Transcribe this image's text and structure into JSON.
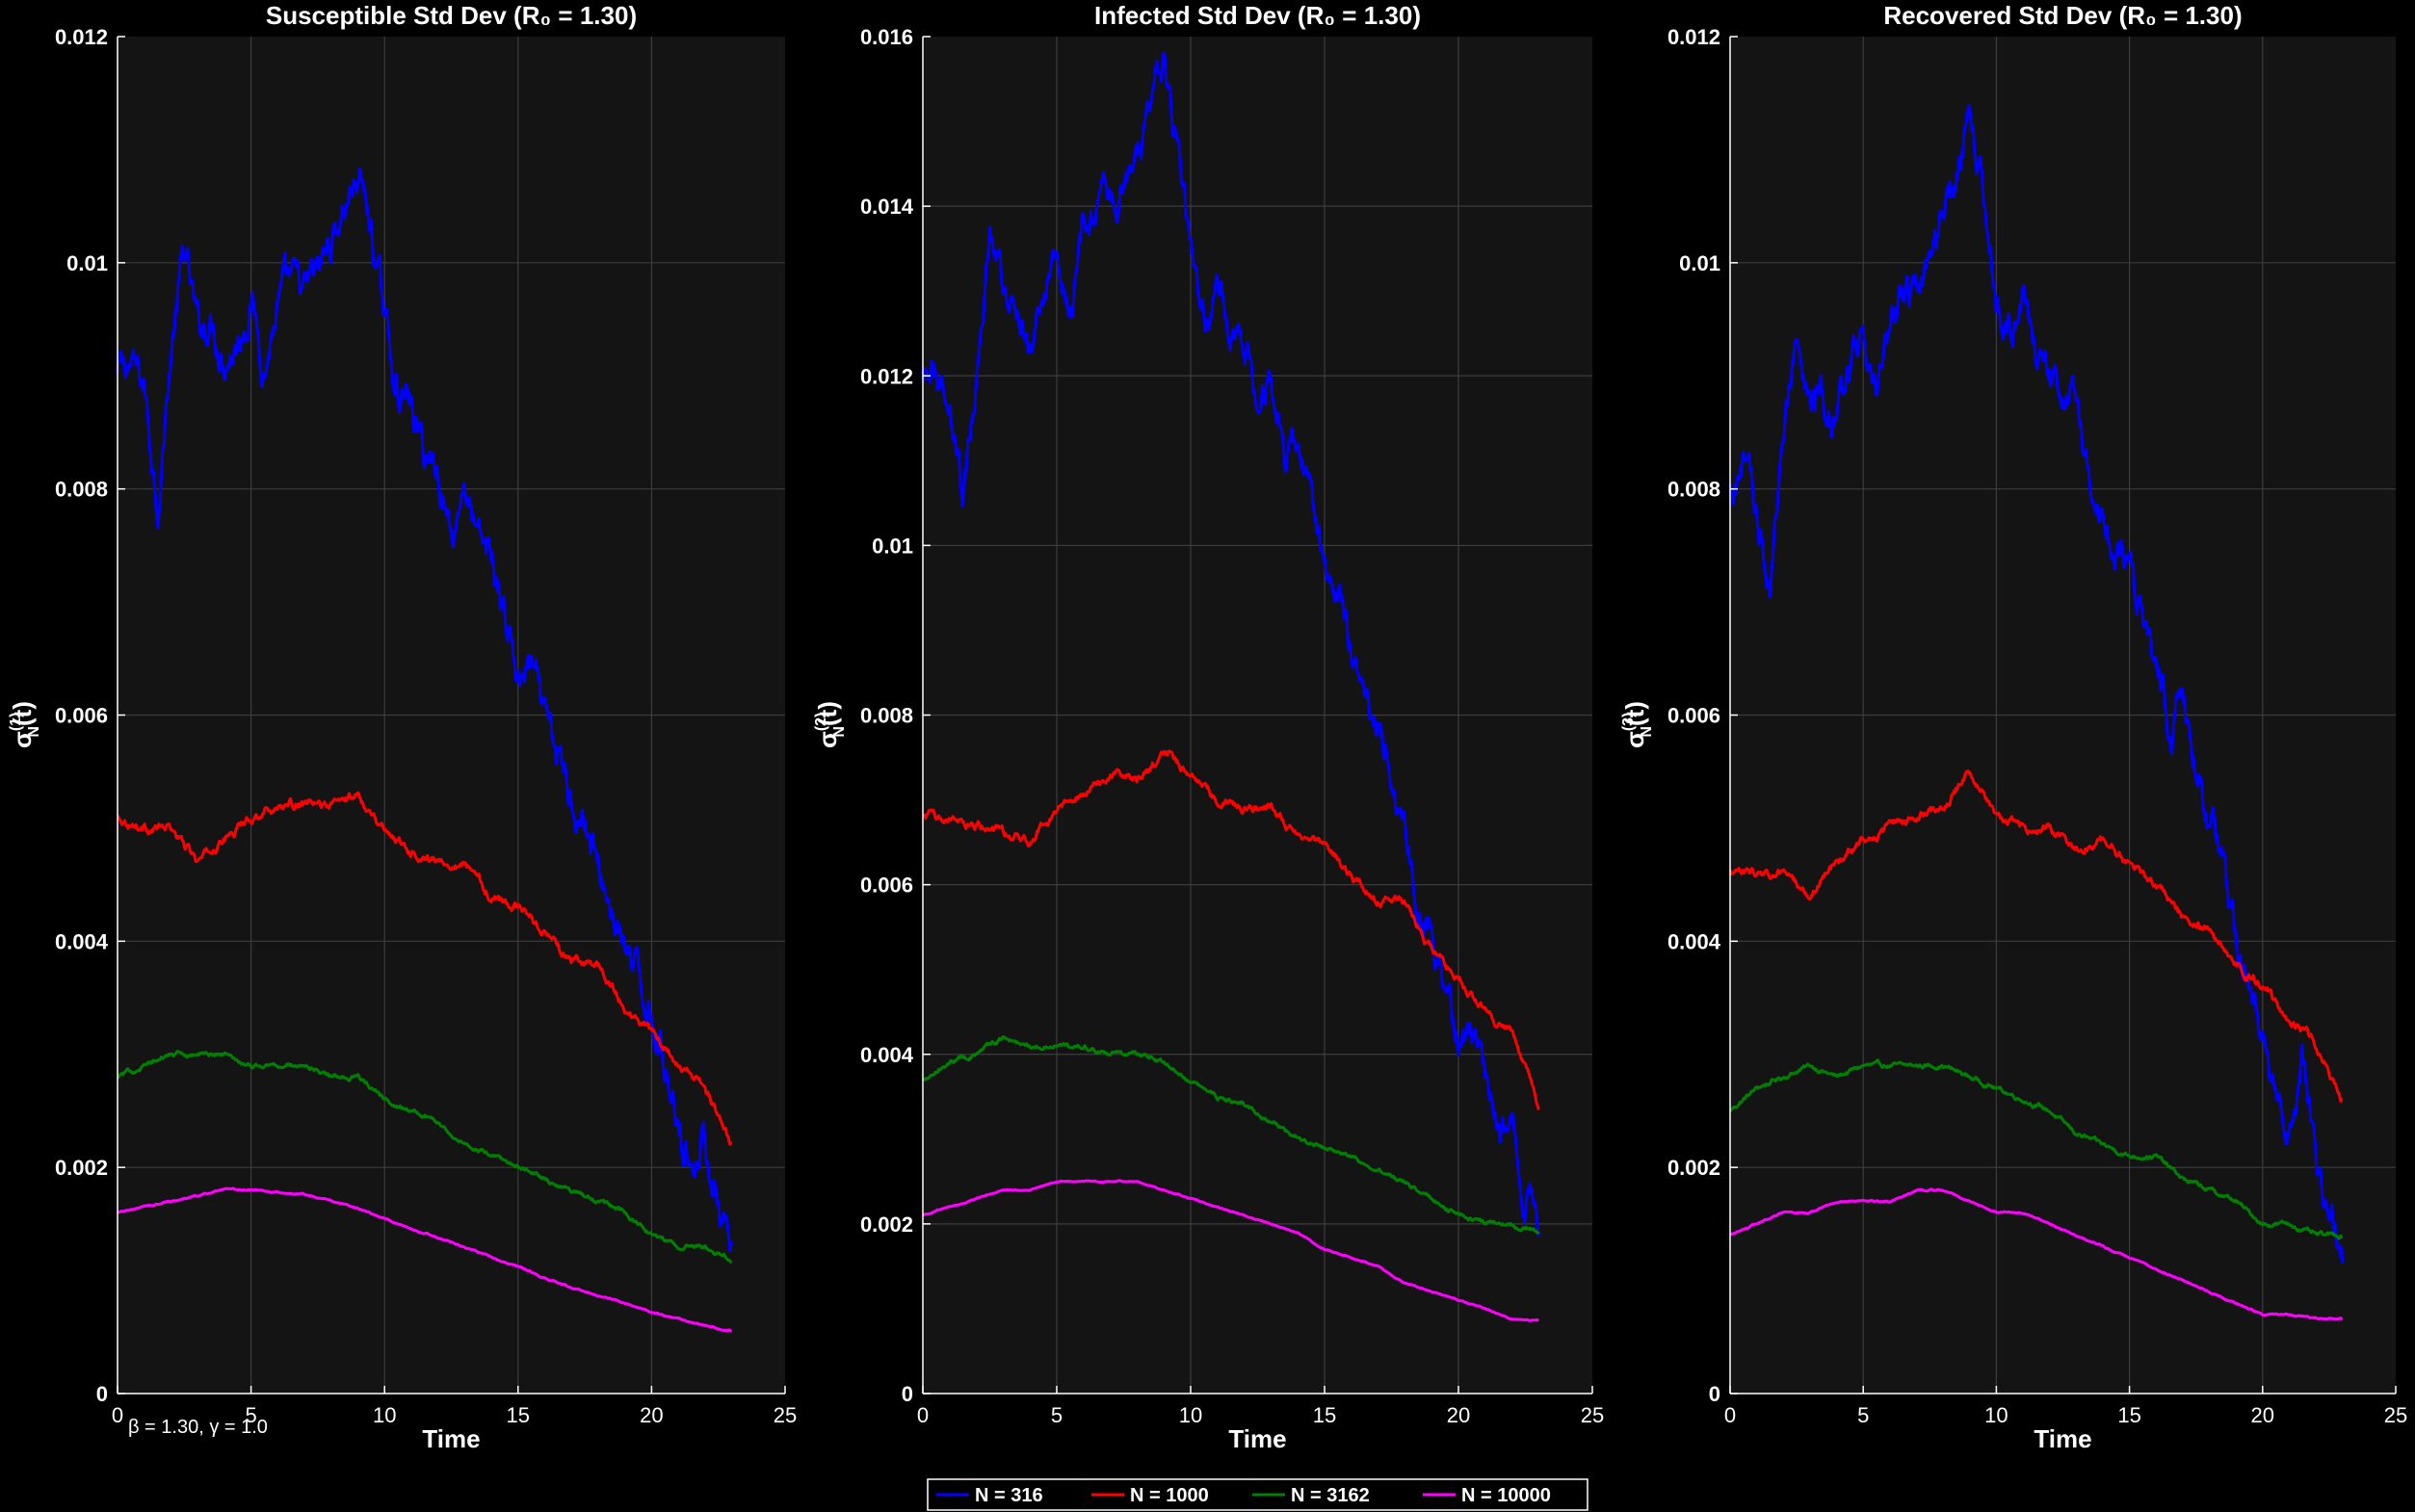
{
  "annotation": "β = 1.30, γ = 1.0",
  "legend": {
    "placement": "bottom-center",
    "entries": [
      {
        "label": "N = 316",
        "color": "#0000ff"
      },
      {
        "label": "N = 1000",
        "color": "#ff0000"
      },
      {
        "label": "N = 3162",
        "color": "#008000"
      },
      {
        "label": "N = 10000",
        "color": "#ff00ff"
      }
    ]
  },
  "chart_data": [
    {
      "type": "line",
      "title": "Susceptible Std Dev (R₀ = 1.30)",
      "xlabel": "Time",
      "ylabel_base": "σ",
      "ylabel_sup": "(1)",
      "ylabel_sub": "N",
      "ylabel_tail": "(t)",
      "xlim": [
        0,
        25
      ],
      "ylim": [
        0,
        0.012
      ],
      "xticks": [
        0,
        5,
        10,
        15,
        20,
        25
      ],
      "yticks": [
        0,
        0.002,
        0.004,
        0.006,
        0.008,
        0.01,
        0.012
      ],
      "ytick_labels": [
        "0",
        "0.002",
        "0.004",
        "0.006",
        "0.008",
        "0.01",
        "0.012"
      ],
      "grid": true,
      "series": [
        {
          "name": "N = 316",
          "color": "#0000ff",
          "noise": 0.00025,
          "x": [
            0,
            0.5,
            1,
            1.5,
            2,
            2.5,
            3,
            3.5,
            4,
            4.5,
            5,
            5.5,
            6,
            6.5,
            7,
            7.5,
            8,
            8.5,
            9,
            9.5,
            10,
            10.5,
            11,
            11.5,
            12,
            12.5,
            13,
            13.5,
            14,
            14.5,
            15,
            15.5,
            16,
            16.5,
            17,
            17.5,
            18,
            18.5,
            19,
            19.5,
            20,
            20.5,
            21,
            21.5,
            22,
            22.5,
            23
          ],
          "y": [
            0.009,
            0.0091,
            0.0089,
            0.0079,
            0.0092,
            0.0101,
            0.0094,
            0.0095,
            0.0092,
            0.0093,
            0.0097,
            0.0091,
            0.0096,
            0.0098,
            0.0097,
            0.0099,
            0.0102,
            0.0105,
            0.0108,
            0.0103,
            0.0095,
            0.0089,
            0.0087,
            0.0083,
            0.0082,
            0.0076,
            0.0081,
            0.0075,
            0.0074,
            0.0069,
            0.0063,
            0.0064,
            0.0059,
            0.0056,
            0.0053,
            0.0051,
            0.0046,
            0.0043,
            0.0039,
            0.0036,
            0.0034,
            0.0029,
            0.0025,
            0.002,
            0.0023,
            0.0016,
            0.0011
          ]
        },
        {
          "name": "N = 1000",
          "color": "#ff0000",
          "noise": 6e-05,
          "x": [
            0,
            1,
            2,
            3,
            4,
            5,
            6,
            7,
            8,
            9,
            10,
            11,
            12,
            13,
            14,
            15,
            16,
            17,
            18,
            19,
            20,
            21,
            22,
            23
          ],
          "y": [
            0.0051,
            0.005,
            0.005,
            0.0047,
            0.0049,
            0.0051,
            0.0052,
            0.0052,
            0.0052,
            0.0053,
            0.005,
            0.0048,
            0.0047,
            0.0047,
            0.0044,
            0.0043,
            0.0041,
            0.0038,
            0.0038,
            0.0034,
            0.0032,
            0.0029,
            0.0027,
            0.0022
          ]
        },
        {
          "name": "N = 3162",
          "color": "#008000",
          "noise": 3e-05,
          "x": [
            0,
            1,
            2,
            3,
            4,
            5,
            6,
            7,
            8,
            9,
            10,
            11,
            12,
            13,
            14,
            15,
            16,
            17,
            18,
            19,
            20,
            21,
            22,
            23
          ],
          "y": [
            0.0028,
            0.0029,
            0.003,
            0.003,
            0.003,
            0.0029,
            0.0029,
            0.0029,
            0.0028,
            0.0028,
            0.0026,
            0.0025,
            0.0024,
            0.0022,
            0.0021,
            0.002,
            0.0019,
            0.0018,
            0.0017,
            0.0016,
            0.0014,
            0.0013,
            0.0013,
            0.0012
          ]
        },
        {
          "name": "N = 10000",
          "color": "#ff00ff",
          "noise": 1e-05,
          "x": [
            0,
            1,
            2,
            3,
            4,
            5,
            6,
            7,
            8,
            9,
            10,
            11,
            12,
            13,
            14,
            15,
            16,
            17,
            18,
            19,
            20,
            21,
            22,
            23
          ],
          "y": [
            0.0016,
            0.00165,
            0.0017,
            0.00175,
            0.0018,
            0.0018,
            0.00178,
            0.00176,
            0.0017,
            0.00164,
            0.00155,
            0.00146,
            0.00138,
            0.0013,
            0.0012,
            0.00112,
            0.00102,
            0.00094,
            0.00087,
            0.0008,
            0.00072,
            0.00066,
            0.0006,
            0.00056
          ]
        }
      ]
    },
    {
      "type": "line",
      "title": "Infected Std Dev (R₀ = 1.30)",
      "xlabel": "Time",
      "ylabel_base": "σ",
      "ylabel_sup": "(2)",
      "ylabel_sub": "N",
      "ylabel_tail": "(t)",
      "xlim": [
        0,
        25
      ],
      "ylim": [
        0,
        0.016
      ],
      "xticks": [
        0,
        5,
        10,
        15,
        20,
        25
      ],
      "yticks": [
        0,
        0.002,
        0.004,
        0.006,
        0.008,
        0.01,
        0.012,
        0.014,
        0.016
      ],
      "ytick_labels": [
        "0",
        "0.002",
        "0.004",
        "0.006",
        "0.008",
        "0.01",
        "0.012",
        "0.014",
        "0.016"
      ],
      "grid": true,
      "series": [
        {
          "name": "N = 316",
          "color": "#0000ff",
          "noise": 0.0003,
          "x": [
            0,
            0.5,
            1,
            1.5,
            2,
            2.5,
            3,
            3.5,
            4,
            4.5,
            5,
            5.5,
            6,
            6.5,
            7,
            7.5,
            8,
            8.5,
            9,
            9.5,
            10,
            10.5,
            11,
            11.5,
            12,
            12.5,
            13,
            13.5,
            14,
            14.5,
            15,
            15.5,
            16,
            16.5,
            17,
            17.5,
            18,
            18.5,
            19,
            19.5,
            20,
            20.5,
            21,
            21.5,
            22,
            22.5,
            23
          ],
          "y": [
            0.012,
            0.0122,
            0.0118,
            0.0106,
            0.012,
            0.0138,
            0.013,
            0.0128,
            0.0124,
            0.0129,
            0.0134,
            0.0128,
            0.0136,
            0.0139,
            0.014,
            0.0142,
            0.0146,
            0.0151,
            0.0157,
            0.0148,
            0.0134,
            0.0126,
            0.0131,
            0.0126,
            0.0123,
            0.0118,
            0.0121,
            0.011,
            0.0113,
            0.0106,
            0.0097,
            0.0094,
            0.0089,
            0.0082,
            0.0078,
            0.0073,
            0.0066,
            0.0058,
            0.0054,
            0.0049,
            0.0043,
            0.0042,
            0.0037,
            0.003,
            0.0034,
            0.0024,
            0.0018
          ]
        },
        {
          "name": "N = 1000",
          "color": "#ff0000",
          "noise": 8e-05,
          "x": [
            0,
            1,
            2,
            3,
            4,
            5,
            6,
            7,
            8,
            9,
            10,
            11,
            12,
            13,
            14,
            15,
            16,
            17,
            18,
            19,
            20,
            21,
            22,
            23
          ],
          "y": [
            0.0068,
            0.0068,
            0.0067,
            0.0066,
            0.0065,
            0.0069,
            0.0071,
            0.0073,
            0.0072,
            0.0076,
            0.0073,
            0.007,
            0.0069,
            0.0069,
            0.0066,
            0.0065,
            0.0061,
            0.0058,
            0.0058,
            0.0052,
            0.0049,
            0.0045,
            0.0042,
            0.0034
          ]
        },
        {
          "name": "N = 3162",
          "color": "#008000",
          "noise": 4e-05,
          "x": [
            0,
            1,
            2,
            3,
            4,
            5,
            6,
            7,
            8,
            9,
            10,
            11,
            12,
            13,
            14,
            15,
            16,
            17,
            18,
            19,
            20,
            21,
            22,
            23
          ],
          "y": [
            0.0037,
            0.0039,
            0.004,
            0.0042,
            0.0041,
            0.0041,
            0.0041,
            0.004,
            0.004,
            0.0039,
            0.0037,
            0.0035,
            0.0034,
            0.0032,
            0.003,
            0.0029,
            0.0028,
            0.0026,
            0.0025,
            0.0023,
            0.0021,
            0.002,
            0.002,
            0.0019
          ]
        },
        {
          "name": "N = 10000",
          "color": "#ff00ff",
          "noise": 1e-05,
          "x": [
            0,
            1,
            2,
            3,
            4,
            5,
            6,
            7,
            8,
            9,
            10,
            11,
            12,
            13,
            14,
            15,
            16,
            17,
            18,
            19,
            20,
            21,
            22,
            23
          ],
          "y": [
            0.0021,
            0.0022,
            0.0023,
            0.0024,
            0.0024,
            0.0025,
            0.0025,
            0.0025,
            0.0025,
            0.0024,
            0.0023,
            0.0022,
            0.0021,
            0.002,
            0.0019,
            0.0017,
            0.0016,
            0.0015,
            0.0013,
            0.0012,
            0.0011,
            0.001,
            0.00088,
            0.00085
          ]
        }
      ]
    },
    {
      "type": "line",
      "title": "Recovered Std Dev (R₀ = 1.30)",
      "xlabel": "Time",
      "ylabel_base": "σ",
      "ylabel_sup": "(3)",
      "ylabel_sub": "N",
      "ylabel_tail": "(t)",
      "xlim": [
        0,
        25
      ],
      "ylim": [
        0,
        0.012
      ],
      "xticks": [
        0,
        5,
        10,
        15,
        20,
        25
      ],
      "yticks": [
        0,
        0.002,
        0.004,
        0.006,
        0.008,
        0.01,
        0.012
      ],
      "ytick_labels": [
        "0",
        "0.002",
        "0.004",
        "0.006",
        "0.008",
        "0.01",
        "0.012"
      ],
      "grid": true,
      "series": [
        {
          "name": "N = 316",
          "color": "#0000ff",
          "noise": 0.00025,
          "x": [
            0,
            0.5,
            1,
            1.5,
            2,
            2.5,
            3,
            3.5,
            4,
            4.5,
            5,
            5.5,
            6,
            6.5,
            7,
            7.5,
            8,
            8.5,
            9,
            9.5,
            10,
            10.5,
            11,
            11.5,
            12,
            12.5,
            13,
            13.5,
            14,
            14.5,
            15,
            15.5,
            16,
            16.5,
            17,
            17.5,
            18,
            18.5,
            19,
            19.5,
            20,
            20.5,
            21,
            21.5,
            22,
            22.5,
            23
          ],
          "y": [
            0.008,
            0.0082,
            0.0078,
            0.0071,
            0.0083,
            0.0094,
            0.0088,
            0.0088,
            0.0085,
            0.0091,
            0.0093,
            0.0089,
            0.0095,
            0.0098,
            0.0097,
            0.0099,
            0.0104,
            0.0108,
            0.0113,
            0.0106,
            0.0096,
            0.0094,
            0.0097,
            0.0091,
            0.0089,
            0.0086,
            0.009,
            0.0079,
            0.0077,
            0.0075,
            0.0073,
            0.0068,
            0.0064,
            0.0059,
            0.0061,
            0.0056,
            0.005,
            0.0047,
            0.004,
            0.0038,
            0.0032,
            0.0026,
            0.0023,
            0.0028,
            0.002,
            0.0018,
            0.0013
          ]
        },
        {
          "name": "N = 1000",
          "color": "#ff0000",
          "noise": 6e-05,
          "x": [
            0,
            1,
            2,
            3,
            4,
            5,
            6,
            7,
            8,
            9,
            10,
            11,
            12,
            13,
            14,
            15,
            16,
            17,
            18,
            19,
            20,
            21,
            22,
            23
          ],
          "y": [
            0.0046,
            0.0046,
            0.0046,
            0.0044,
            0.0047,
            0.0049,
            0.005,
            0.0051,
            0.0052,
            0.0055,
            0.0051,
            0.005,
            0.005,
            0.0048,
            0.0049,
            0.0047,
            0.0045,
            0.0042,
            0.0041,
            0.0038,
            0.0036,
            0.0033,
            0.0031,
            0.0026
          ]
        },
        {
          "name": "N = 3162",
          "color": "#008000",
          "noise": 3e-05,
          "x": [
            0,
            1,
            2,
            3,
            4,
            5,
            6,
            7,
            8,
            9,
            10,
            11,
            12,
            13,
            14,
            15,
            16,
            17,
            18,
            19,
            20,
            21,
            22,
            23
          ],
          "y": [
            0.0025,
            0.0027,
            0.0028,
            0.0029,
            0.0028,
            0.0029,
            0.0029,
            0.0029,
            0.0029,
            0.0028,
            0.0027,
            0.0026,
            0.0025,
            0.0023,
            0.0022,
            0.0021,
            0.0021,
            0.0019,
            0.0018,
            0.0017,
            0.0015,
            0.0015,
            0.0014,
            0.0014
          ]
        },
        {
          "name": "N = 10000",
          "color": "#ff00ff",
          "noise": 1e-05,
          "x": [
            0,
            1,
            2,
            3,
            4,
            5,
            6,
            7,
            8,
            9,
            10,
            11,
            12,
            13,
            14,
            15,
            16,
            17,
            18,
            19,
            20,
            21,
            22,
            23
          ],
          "y": [
            0.0014,
            0.0015,
            0.0016,
            0.0016,
            0.0017,
            0.0017,
            0.0017,
            0.0018,
            0.0018,
            0.0017,
            0.0016,
            0.0016,
            0.0015,
            0.0014,
            0.0013,
            0.0012,
            0.0011,
            0.001,
            0.0009,
            0.0008,
            0.0007,
            0.0007,
            0.00067,
            0.00066
          ]
        }
      ]
    }
  ]
}
